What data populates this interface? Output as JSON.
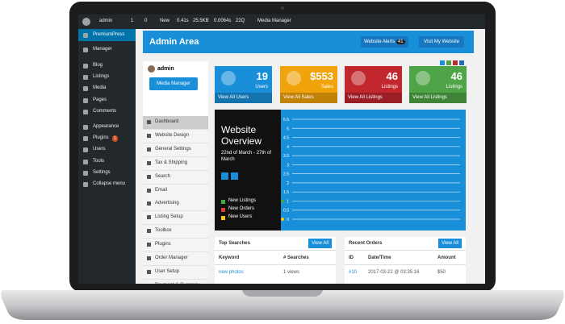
{
  "admin_bar": {
    "user": "admin",
    "updates": "1",
    "comments": "0",
    "new": "New",
    "time": "0.41s",
    "memory": "25.5KB",
    "query_time": "0.0064s",
    "queries": "22Q",
    "media": "Media Manager"
  },
  "wp_menu": {
    "items": [
      "PremiumPress",
      "Manager",
      "Blog",
      "Listings",
      "Media",
      "Pages",
      "Comments",
      "Appearance",
      "Plugins",
      "Users",
      "Tools",
      "Settings",
      "Collapse menu"
    ],
    "plugins_badge": "1"
  },
  "header": {
    "title": "Admin Area",
    "alerts": "Website Alerts",
    "alerts_count": "41",
    "visit": "Visit My Website"
  },
  "side_panel": {
    "user": "admin",
    "button": "Media Manager",
    "items": [
      "Dashboard",
      "Website Design",
      "General Settings",
      "Tax & Shipping",
      "Search",
      "Email",
      "Advertising",
      "Listing Setup",
      "Toolbox",
      "Plugins",
      "Order Manager",
      "User Setup",
      "Payment & Currency"
    ]
  },
  "stats": [
    {
      "value": "19",
      "label": "Users",
      "link": "View All Users",
      "color": "#1a8fd9"
    },
    {
      "value": "$553",
      "label": "Sales",
      "link": "View All Sales",
      "color": "#f0a30a"
    },
    {
      "value": "46",
      "label": "Listings",
      "link": "View All Listings",
      "color": "#c1272d"
    },
    {
      "value": "46",
      "label": "Listings",
      "link": "View All Listings",
      "color": "#4ea446"
    }
  ],
  "overview": {
    "title": "Website Overview",
    "dates": "22nd of March - 27th of March"
  },
  "chart_data": {
    "type": "line",
    "ylim": [
      0,
      5.5
    ],
    "yticks": [
      0,
      0.5,
      1,
      1.5,
      2,
      2.5,
      3,
      3.5,
      4,
      4.5,
      5,
      5.5
    ],
    "grid": true,
    "series": [
      {
        "name": "New Listings",
        "color": "#3fae3a",
        "values": [
          1
        ]
      },
      {
        "name": "New Orders",
        "color": "#e03a2f",
        "values": [
          0
        ]
      },
      {
        "name": "New Users",
        "color": "#f5c518",
        "values": [
          0
        ]
      }
    ]
  },
  "top_searches": {
    "title": "Top Searches",
    "button": "View All",
    "columns": [
      "Keyword",
      "# Searches"
    ],
    "rows": [
      [
        "new photos",
        "1 views"
      ]
    ]
  },
  "recent_orders": {
    "title": "Recent Orders",
    "button": "View All",
    "columns": [
      "ID",
      "Date/Time",
      "Amount"
    ],
    "rows": [
      [
        "#10",
        "2017-03-22 @ 03:35:16",
        "$50"
      ]
    ]
  }
}
